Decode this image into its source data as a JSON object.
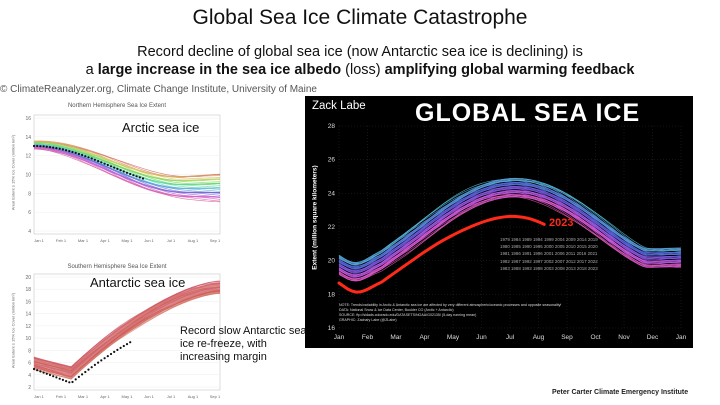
{
  "title": "Global Sea Ice Climate Catastrophe",
  "subtitle_line1": "Record decline of global sea ice (now Antarctic sea ice is declining) is",
  "subtitle_line2_pre": "a ",
  "subtitle_line2_bold1": "large increase in the sea ice albedo",
  "subtitle_line2_mid": " (loss) ",
  "subtitle_line2_bold2": "amplifying global warming feedback",
  "credit": "ClimateReanalyzer.org, Climate Change Institute, University of Maine",
  "arctic_panel": {
    "title": "Northern Hemisphere Sea Ice Extent",
    "label": "Arctic sea ice",
    "ylabel": "Areal Extent ≥ 15% Ice Cover (million km²)",
    "yticks": [
      "16",
      "14",
      "12",
      "10",
      "8",
      "6",
      "4"
    ],
    "xticks": [
      "Jan 1",
      "Feb 1",
      "Mar 1",
      "Apr 1",
      "May 1",
      "Jun 1",
      "Jul 1",
      "Aug 1",
      "Sep 1"
    ]
  },
  "antarctic_panel": {
    "title": "Southern Hemisphere Sea Ice Extent",
    "label": "Antarctic sea ice",
    "note": "Record slow Antarctic sea ice  re-freeze, with increasing margin",
    "ylabel": "Areal Extent ≥ 15% Ice Cover (million km²)",
    "yticks": [
      "20",
      "18",
      "16",
      "14",
      "12",
      "10",
      "8",
      "6",
      "4",
      "2"
    ],
    "xticks": [
      "Jan 1",
      "Feb 1",
      "Mar 1",
      "Apr 1",
      "May 1",
      "Jun 1",
      "Jul 1",
      "Aug 1",
      "Sep 1"
    ]
  },
  "global_panel": {
    "author": "Zack Labe",
    "title": "GLOBAL SEA ICE",
    "ylabel": "Extent (million square kilometers)",
    "yticks": [
      "28",
      "26",
      "24",
      "22",
      "20",
      "18",
      "16"
    ],
    "xticks": [
      "Jan",
      "Feb",
      "Mar",
      "Apr",
      "May",
      "Jun",
      "Jul",
      "Aug",
      "Sep",
      "Oct",
      "Nov",
      "Dec",
      "Jan"
    ],
    "highlight_year": "2023",
    "year_legend_rows": [
      "1979 1984 1989 1994 1999 2004 2009 2014 2019",
      "1980 1985 1990 1995 2000 2005 2010 2015 2020",
      "1981 1986 1991 1996 2001 2006 2011 2016 2021",
      "1982 1987 1992 1997 2002 2007 2012 2017 2022",
      "1983 1988 1993 1998 2003 2008 2013 2018 2023"
    ],
    "notes": [
      "NOTE: Trends/variability in Arctic & Antarctic sea ice are affected by very different atmospheric/oceanic processes and opposite seasonality!",
      "DATA: National Snow & Ice Data Center, Boulder CO (Arctic + Antarctic)",
      "SOURCE: ftp://sidads.colorado.edu/DATASETS/NOAA/G02135/ (5-day running mean)",
      "GRAPHIC: Zachary Labe (@ZLabe)"
    ]
  },
  "footer": "Peter Carter Climate Emergency Institute",
  "colors": {
    "highlight": "#ff2a1a",
    "panel_bg": "#000000",
    "text": "#111111"
  }
}
